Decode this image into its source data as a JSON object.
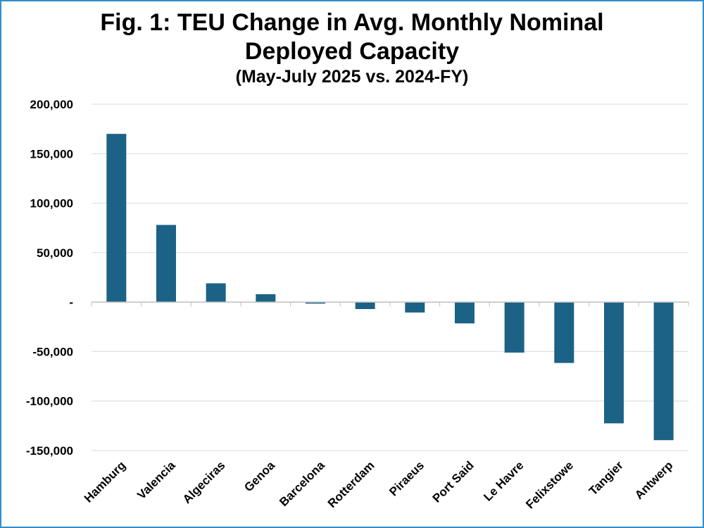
{
  "chart_data": {
    "type": "bar",
    "title": "Fig. 1: TEU Change in Avg. Monthly Nominal Deployed Capacity",
    "title_lines": [
      "Fig. 1: TEU Change in Avg. Monthly Nominal",
      "Deployed Capacity"
    ],
    "subtitle": "(May-July 2025 vs. 2024-FY)",
    "xlabel": "",
    "ylabel": "",
    "categories": [
      "Hamburg",
      "Valencia",
      "Algeciras",
      "Genoa",
      "Barcelona",
      "Rotterdam",
      "Piraeus",
      "Port Said",
      "Le Havre",
      "Felixstowe",
      "Tangier",
      "Antwerp"
    ],
    "values": [
      170000,
      78000,
      19000,
      8000,
      -1500,
      -7000,
      -10500,
      -21500,
      -51000,
      -61500,
      -122500,
      -139500
    ],
    "ylim": [
      -150000,
      200000
    ],
    "yticks": [
      200000,
      150000,
      100000,
      50000,
      0,
      -50000,
      -100000,
      -150000
    ],
    "ytick_labels": [
      "200,000",
      "150,000",
      "100,000",
      "50,000",
      "-",
      "-50,000",
      "-100,000",
      "-150,000"
    ],
    "grid": true,
    "legend": "none",
    "colors": {
      "bar": "#1b6286",
      "grid": "#d9d9d9",
      "axis": "#bfbfbf",
      "border": "#2f8fc9"
    }
  }
}
